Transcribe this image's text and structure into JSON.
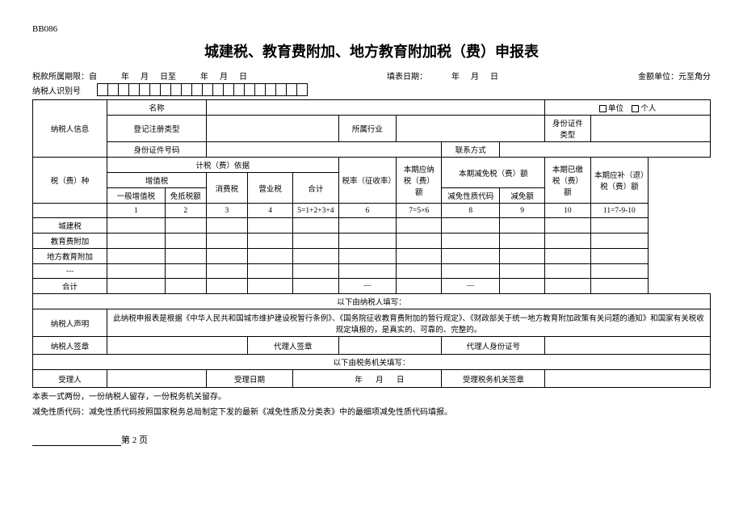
{
  "form_code": "BB086",
  "title": "城建税、教育费附加、地方教育附加税（费）申报表",
  "period": {
    "label": "税款所属期限：自",
    "y1": "年",
    "m1": "月",
    "d1": "日至",
    "y2": "年",
    "m2": "月",
    "d2": "日"
  },
  "fill_date": {
    "label": "填表日期：",
    "y": "年",
    "m": "月",
    "d": "日"
  },
  "amount_unit": "金额单位：元至角分",
  "taxpayer_id_label": "纳税人识别号",
  "id_cell_count": 20,
  "taxpayer_info": {
    "section_label": "纳税人信息",
    "name": "名称",
    "unit": "单位",
    "individual": "个人",
    "reg_type": "登记注册类型",
    "industry": "所属行业",
    "id_type": "身份证件类型",
    "id_number": "身份证件号码",
    "contact": "联系方式"
  },
  "columns": {
    "tax_type": "税（费）种",
    "basis_group": "计税（费）依据",
    "vat_group": "增值税",
    "normal_vat": "一般增值税",
    "deduct_vat": "免抵税额",
    "consumption_tax": "消费税",
    "business_tax": "营业税",
    "total": "合计",
    "rate": "税率（征收率）",
    "current_payable": "本期应纳税（费）额",
    "current_reduction_group": "本期减免税（费）额",
    "reduction_code": "减免性质代码",
    "reduction_amount": "减免额",
    "current_paid": "本期已缴税（费）额",
    "current_due": "本期应补（退）税（费）额"
  },
  "col_numbers": [
    "1",
    "2",
    "3",
    "4",
    "5=1+2+3+4",
    "6",
    "7=5×6",
    "8",
    "9",
    "10",
    "11=7-9-10"
  ],
  "tax_rows": [
    "城建税",
    "教育费附加",
    "地方教育附加",
    "---"
  ],
  "total_row": "合计",
  "dash": "—",
  "taxpayer_fill_header": "以下由纳税人填写：",
  "declaration": {
    "label": "纳税人声明",
    "text": "此纳税申报表是根据《中华人民共和国城市维护建设税暂行条例》、《国务院征收教育费附加的暂行规定》、《财政部关于统一地方教育附加政策有关问题的通知》和国家有关税收规定填报的，是真实的、可靠的、完整的。"
  },
  "taxpayer_sign": "纳税人签章",
  "agent_sign": "代理人签章",
  "agent_id": "代理人身份证号",
  "tax_office_fill_header": "以下由税务机关填写：",
  "receiver": "受理人",
  "receive_date_label": "受理日期",
  "receive_date": {
    "y": "年",
    "m": "月",
    "d": "日"
  },
  "receive_office_sign": "受理税务机关签章",
  "footnote1": "本表一式两份，一份纳税人留存，一份税务机关留存。",
  "footnote2": "减免性质代码：减免性质代码按照国家税务总局制定下发的最新《减免性质及分类表》中的最细项减免性质代码填报。",
  "page_label": "第 2 页",
  "colors": {
    "text": "#000000",
    "background": "#ffffff",
    "border": "#000000"
  }
}
